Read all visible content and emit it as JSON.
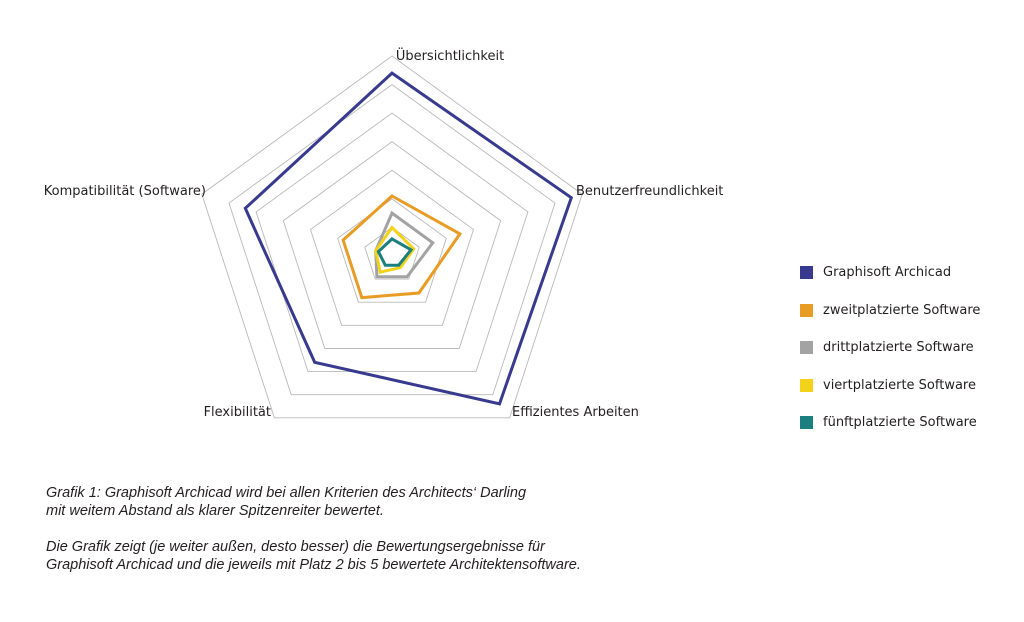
{
  "chart_data": {
    "type": "radar",
    "axes": [
      "Übersichtlichkeit",
      "Benutzerfreundlichkeit",
      "Effizientes Arbeiten",
      "Flexibilität",
      "Kompatibilität (Software)"
    ],
    "scale_levels": 7,
    "range": [
      0,
      7
    ],
    "series": [
      {
        "name": "Graphisoft Archicad",
        "color": "#373a8e",
        "values": [
          6.4,
          6.6,
          6.4,
          4.6,
          5.4
        ]
      },
      {
        "name": "zweitplatzierte Software",
        "color": "#e89c24",
        "values": [
          2.1,
          2.5,
          1.6,
          1.8,
          1.8
        ]
      },
      {
        "name": "drittplatzierte Software",
        "color": "#a3a3a3",
        "values": [
          1.5,
          1.5,
          0.9,
          0.9,
          0.6
        ]
      },
      {
        "name": "viertplatzierte Software",
        "color": "#f2d21b",
        "values": [
          1.0,
          0.8,
          0.5,
          0.7,
          0.6
        ]
      },
      {
        "name": "fünftplatzierte Software",
        "color": "#1c7f7f",
        "values": [
          0.6,
          0.7,
          0.4,
          0.4,
          0.5
        ]
      }
    ],
    "grid": true,
    "legend": "right"
  },
  "caption": {
    "paragraph1_line1": "Grafik 1: Graphisoft Archicad wird bei allen Kriterien des Architects‘ Darling",
    "paragraph1_line2": "mit weitem Abstand als klarer Spitzenreiter bewertet.",
    "paragraph2_line1": "Die Grafik zeigt (je weiter außen, desto besser) die Bewertungsergebnisse für",
    "paragraph2_line2": "Graphisoft Archicad und die jeweils mit Platz 2 bis 5 bewertete Architektensoftware."
  }
}
